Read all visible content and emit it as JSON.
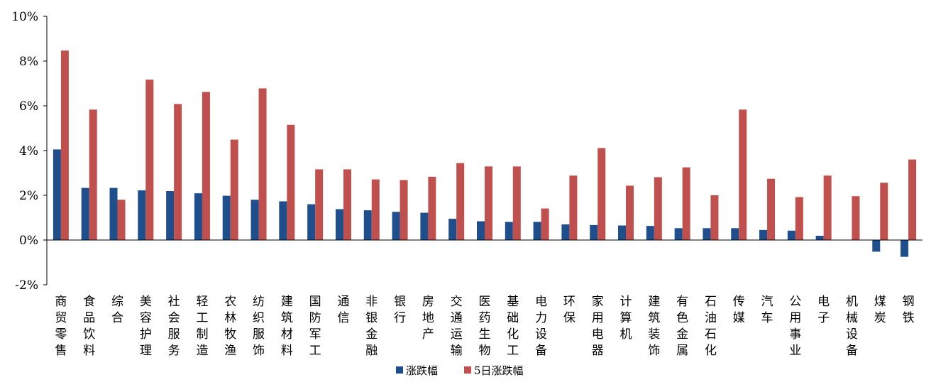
{
  "chart_data": {
    "type": "bar",
    "categories": [
      "商贸零售",
      "食品饮料",
      "综合",
      "美容护理",
      "社会服务",
      "轻工制造",
      "农林牧渔",
      "纺织服饰",
      "建筑材料",
      "国防军工",
      "通信",
      "非银金融",
      "银行",
      "房地产",
      "交通运输",
      "医药生物",
      "基础化工",
      "电力设备",
      "环保",
      "家用电器",
      "计算机",
      "建筑装饰",
      "有色金属",
      "石油石化",
      "传媒",
      "汽车",
      "公用事业",
      "电子",
      "机械设备",
      "煤炭",
      "钢铁"
    ],
    "series": [
      {
        "name": "涨跌幅",
        "color": "#1f4e8c",
        "values": [
          4.05,
          2.33,
          2.33,
          2.22,
          2.19,
          2.09,
          1.98,
          1.8,
          1.73,
          1.6,
          1.38,
          1.33,
          1.26,
          1.22,
          0.95,
          0.84,
          0.81,
          0.81,
          0.7,
          0.67,
          0.65,
          0.63,
          0.53,
          0.53,
          0.53,
          0.45,
          0.42,
          0.19,
          0.0,
          -0.52,
          -0.75
        ]
      },
      {
        "name": "5日涨跌幅",
        "color": "#c0504d",
        "values": [
          8.47,
          5.83,
          1.8,
          7.17,
          6.08,
          6.62,
          4.49,
          6.78,
          5.15,
          3.16,
          3.16,
          2.71,
          2.68,
          2.83,
          3.44,
          3.29,
          3.29,
          1.41,
          2.88,
          4.11,
          2.43,
          2.81,
          3.25,
          2.0,
          5.83,
          2.74,
          1.92,
          2.88,
          1.96,
          2.56,
          3.6
        ]
      }
    ],
    "yticks": [
      "10%",
      "8%",
      "6%",
      "4%",
      "2%",
      "0%",
      "-2%"
    ],
    "ylim": [
      -2,
      10
    ],
    "xlabel": "",
    "ylabel": "",
    "legend_position": "bottom-center"
  }
}
